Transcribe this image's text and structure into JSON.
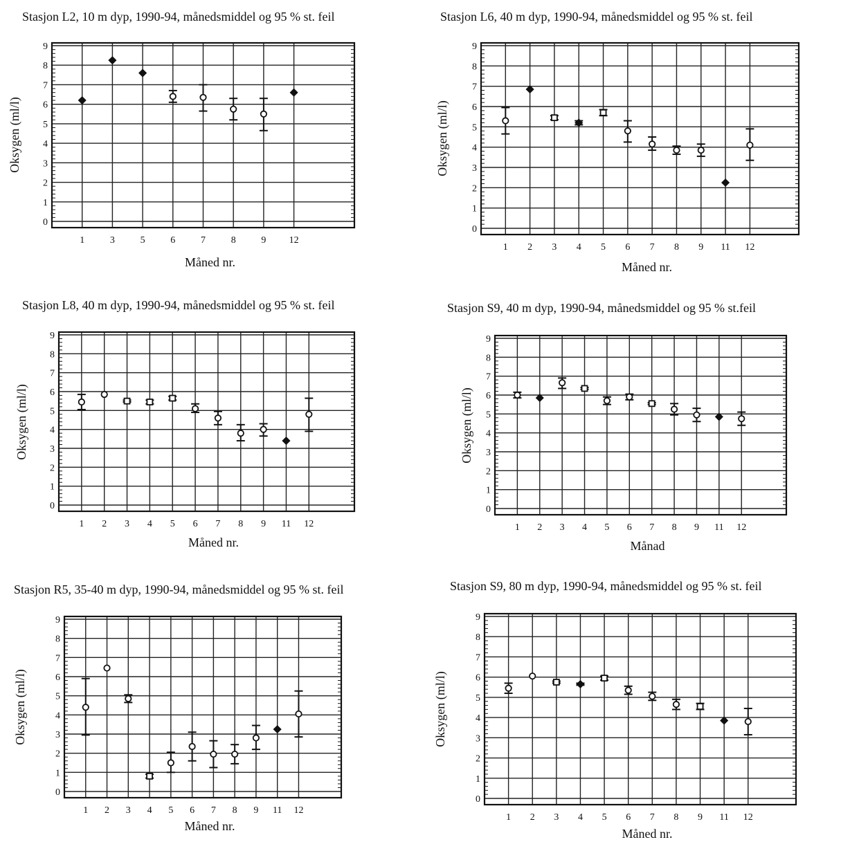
{
  "chart_data": [
    {
      "type": "scatter",
      "title": "Stasjon L2, 10 m dyp, 1990-94, månedsmiddel og 95 % st. feil",
      "xlabel": "Måned nr.",
      "ylabel": "Oksygen (ml/l)",
      "ylim": [
        0,
        9
      ],
      "yticks": [
        "0",
        "1",
        "2",
        "3",
        "4",
        "5",
        "6",
        "7",
        "8",
        "9"
      ],
      "grid": true,
      "categories": [
        "1",
        "3",
        "5",
        "6",
        "7",
        "8",
        "9",
        "12"
      ],
      "series": [
        {
          "values": [
            6.2,
            8.25,
            7.6,
            6.4,
            6.35,
            5.75,
            5.5,
            6.6
          ],
          "err_low": [
            6.2,
            8.25,
            7.6,
            6.1,
            5.65,
            5.2,
            4.65,
            6.6
          ],
          "err_high": [
            6.2,
            8.25,
            7.6,
            6.7,
            7.0,
            6.3,
            6.3,
            6.6
          ]
        }
      ]
    },
    {
      "type": "scatter",
      "title": "Stasjon L6, 40 m dyp, 1990-94, månedsmiddel og 95 % st. feil",
      "xlabel": "Måned nr.",
      "ylabel": "Oksygen (ml/l)",
      "ylim": [
        0,
        9
      ],
      "yticks": [
        "0",
        "1",
        "2",
        "3",
        "4",
        "5",
        "6",
        "7",
        "8",
        "9"
      ],
      "grid": true,
      "categories": [
        "1",
        "2",
        "3",
        "4",
        "5",
        "6",
        "7",
        "8",
        "9",
        "11",
        "12"
      ],
      "series": [
        {
          "values": [
            5.3,
            6.85,
            5.45,
            5.2,
            5.7,
            4.8,
            4.15,
            3.85,
            3.85,
            2.25,
            4.1
          ],
          "err_low": [
            4.65,
            6.85,
            5.35,
            5.1,
            5.55,
            4.25,
            3.85,
            3.65,
            3.55,
            2.25,
            3.35
          ],
          "err_high": [
            5.95,
            6.85,
            5.55,
            5.3,
            5.85,
            5.3,
            4.5,
            4.05,
            4.15,
            2.25,
            4.9
          ]
        }
      ]
    },
    {
      "type": "scatter",
      "title": "Stasjon L8, 40 m dyp, 1990-94, månedsmiddel og 95 % st. feil",
      "xlabel": "Måned nr.",
      "ylabel": "Oksygen (ml/l)",
      "ylim": [
        0,
        9
      ],
      "yticks": [
        "0",
        "1",
        "2",
        "3",
        "4",
        "5",
        "6",
        "7",
        "8",
        "9"
      ],
      "grid": true,
      "categories": [
        "1",
        "2",
        "3",
        "4",
        "5",
        "6",
        "7",
        "8",
        "9",
        "11",
        "12"
      ],
      "series": [
        {
          "values": [
            5.45,
            5.85,
            5.5,
            5.45,
            5.65,
            5.1,
            4.6,
            3.8,
            4.0,
            3.4,
            4.8
          ],
          "err_low": [
            5.05,
            5.85,
            5.45,
            5.35,
            5.55,
            4.9,
            4.25,
            3.4,
            3.65,
            3.4,
            3.9
          ],
          "err_high": [
            5.85,
            5.85,
            5.55,
            5.55,
            5.75,
            5.35,
            4.95,
            4.25,
            4.3,
            3.4,
            5.65
          ]
        }
      ]
    },
    {
      "type": "scatter",
      "title": "Stasjon S9, 40 m dyp, 1990-94, månedsmiddel og 95 % st.feil",
      "xlabel": "Månad",
      "ylabel": "Oksygen (ml/l)",
      "ylim": [
        0,
        9
      ],
      "yticks": [
        "0",
        "1",
        "2",
        "3",
        "4",
        "5",
        "6",
        "7",
        "8",
        "9"
      ],
      "grid": true,
      "categories": [
        "1",
        "2",
        "3",
        "4",
        "5",
        "6",
        "7",
        "8",
        "9",
        "11",
        "12"
      ],
      "series": [
        {
          "values": [
            6.0,
            5.85,
            6.65,
            6.35,
            5.7,
            5.9,
            5.55,
            5.25,
            4.95,
            4.85,
            4.75
          ],
          "err_low": [
            5.85,
            5.85,
            6.35,
            6.3,
            5.5,
            5.75,
            5.5,
            4.95,
            4.6,
            4.85,
            4.4
          ],
          "err_high": [
            6.15,
            5.85,
            6.9,
            6.4,
            5.9,
            6.05,
            5.6,
            5.55,
            5.3,
            4.85,
            5.1
          ]
        }
      ]
    },
    {
      "type": "scatter",
      "title": "Stasjon R5, 35-40 m dyp, 1990-94, månedsmiddel og 95 % st. feil",
      "xlabel": "Måned nr.",
      "ylabel": "Oksygen (ml/l)",
      "ylim": [
        0,
        9
      ],
      "yticks": [
        "0",
        "1",
        "2",
        "3",
        "4",
        "5",
        "6",
        "7",
        "8",
        "9"
      ],
      "grid": true,
      "categories": [
        "1",
        "2",
        "3",
        "4",
        "5",
        "6",
        "7",
        "8",
        "9",
        "11",
        "12"
      ],
      "series": [
        {
          "values": [
            4.4,
            6.45,
            4.85,
            0.8,
            1.5,
            2.35,
            1.95,
            1.95,
            2.8,
            3.25,
            4.05
          ],
          "err_low": [
            2.95,
            6.45,
            4.65,
            0.7,
            1.0,
            1.6,
            1.25,
            1.45,
            2.2,
            3.25,
            2.85
          ],
          "err_high": [
            5.9,
            6.45,
            5.05,
            0.9,
            2.05,
            3.1,
            2.65,
            2.45,
            3.45,
            3.25,
            5.25
          ]
        }
      ]
    },
    {
      "type": "scatter",
      "title": "Stasjon S9, 80 m dyp, 1990-94, månedsmiddel og 95 % st. feil",
      "xlabel": "Måned nr.",
      "ylabel": "Oksygen (ml/l)",
      "ylim": [
        0,
        9
      ],
      "yticks": [
        "0",
        "1",
        "2",
        "3",
        "4",
        "5",
        "6",
        "7",
        "8",
        "9"
      ],
      "grid": true,
      "categories": [
        "1",
        "2",
        "3",
        "4",
        "5",
        "6",
        "7",
        "8",
        "9",
        "11",
        "12"
      ],
      "series": [
        {
          "values": [
            5.45,
            6.05,
            5.75,
            5.65,
            5.95,
            5.35,
            5.05,
            4.65,
            4.55,
            3.85,
            3.8
          ],
          "err_low": [
            5.2,
            6.05,
            5.7,
            5.6,
            5.85,
            5.15,
            4.85,
            4.4,
            4.4,
            3.85,
            3.15
          ],
          "err_high": [
            5.7,
            6.05,
            5.8,
            5.7,
            6.05,
            5.55,
            5.25,
            4.9,
            4.7,
            3.85,
            4.45
          ]
        }
      ]
    }
  ]
}
